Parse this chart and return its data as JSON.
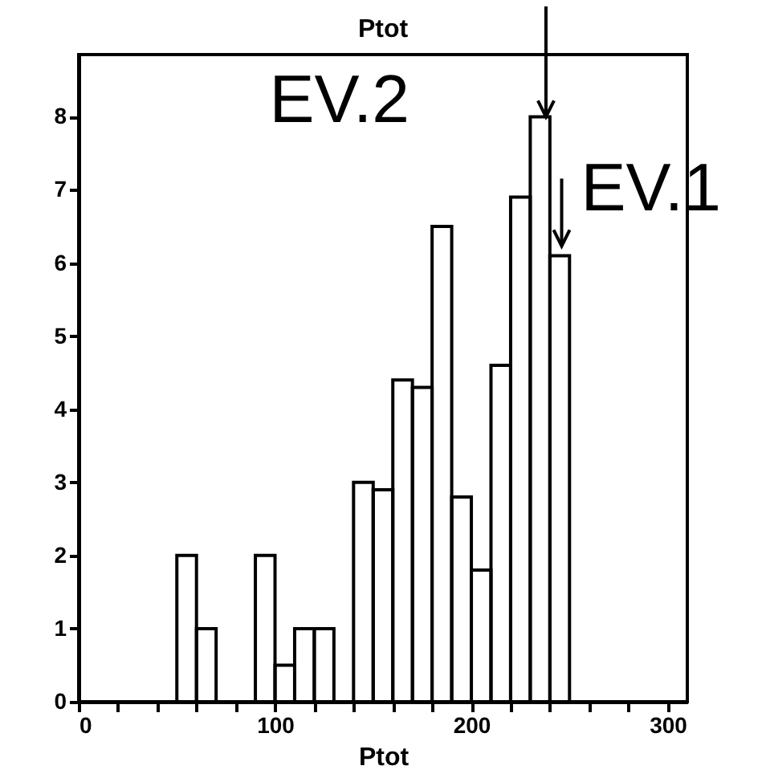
{
  "chart_data": {
    "type": "histogram",
    "xlabel": "Ptot",
    "x2label": "Ptot",
    "bins": [
      50,
      60,
      70,
      80,
      90,
      100,
      110,
      120,
      130,
      140,
      150,
      160,
      170,
      180,
      190,
      200,
      210,
      220,
      230,
      240,
      250
    ],
    "values": [
      2,
      1,
      0,
      0,
      2,
      0.5,
      1,
      1,
      0,
      3,
      2.9,
      4.4,
      4.3,
      6.5,
      2.8,
      1.8,
      4.6,
      6.9,
      8,
      6.1
    ],
    "color": "#000000",
    "xlim": [
      0,
      310
    ],
    "xticks": [
      0,
      {
        "value": 20,
        "label": null
      },
      {
        "value": 40,
        "label": null
      },
      {
        "value": 60,
        "label": null
      },
      {
        "value": 80,
        "label": null
      },
      100,
      {
        "value": 120,
        "label": null
      },
      {
        "value": 140,
        "label": null
      },
      {
        "value": 160,
        "label": null
      },
      {
        "value": 180,
        "label": null
      },
      200,
      {
        "value": 220,
        "label": null
      },
      {
        "value": 240,
        "label": null
      },
      {
        "value": 260,
        "label": null
      },
      {
        "value": 280,
        "label": null
      },
      300
    ],
    "ylim": [
      0,
      8.85
    ],
    "yticks": [
      0,
      1,
      2,
      3,
      4,
      5,
      6,
      7,
      8
    ],
    "grid": false,
    "annotations": [
      {
        "text": "EV.2",
        "x": 238,
        "y": 8
      },
      {
        "text": "EV.1",
        "x": 246,
        "y": 6.1
      }
    ]
  }
}
